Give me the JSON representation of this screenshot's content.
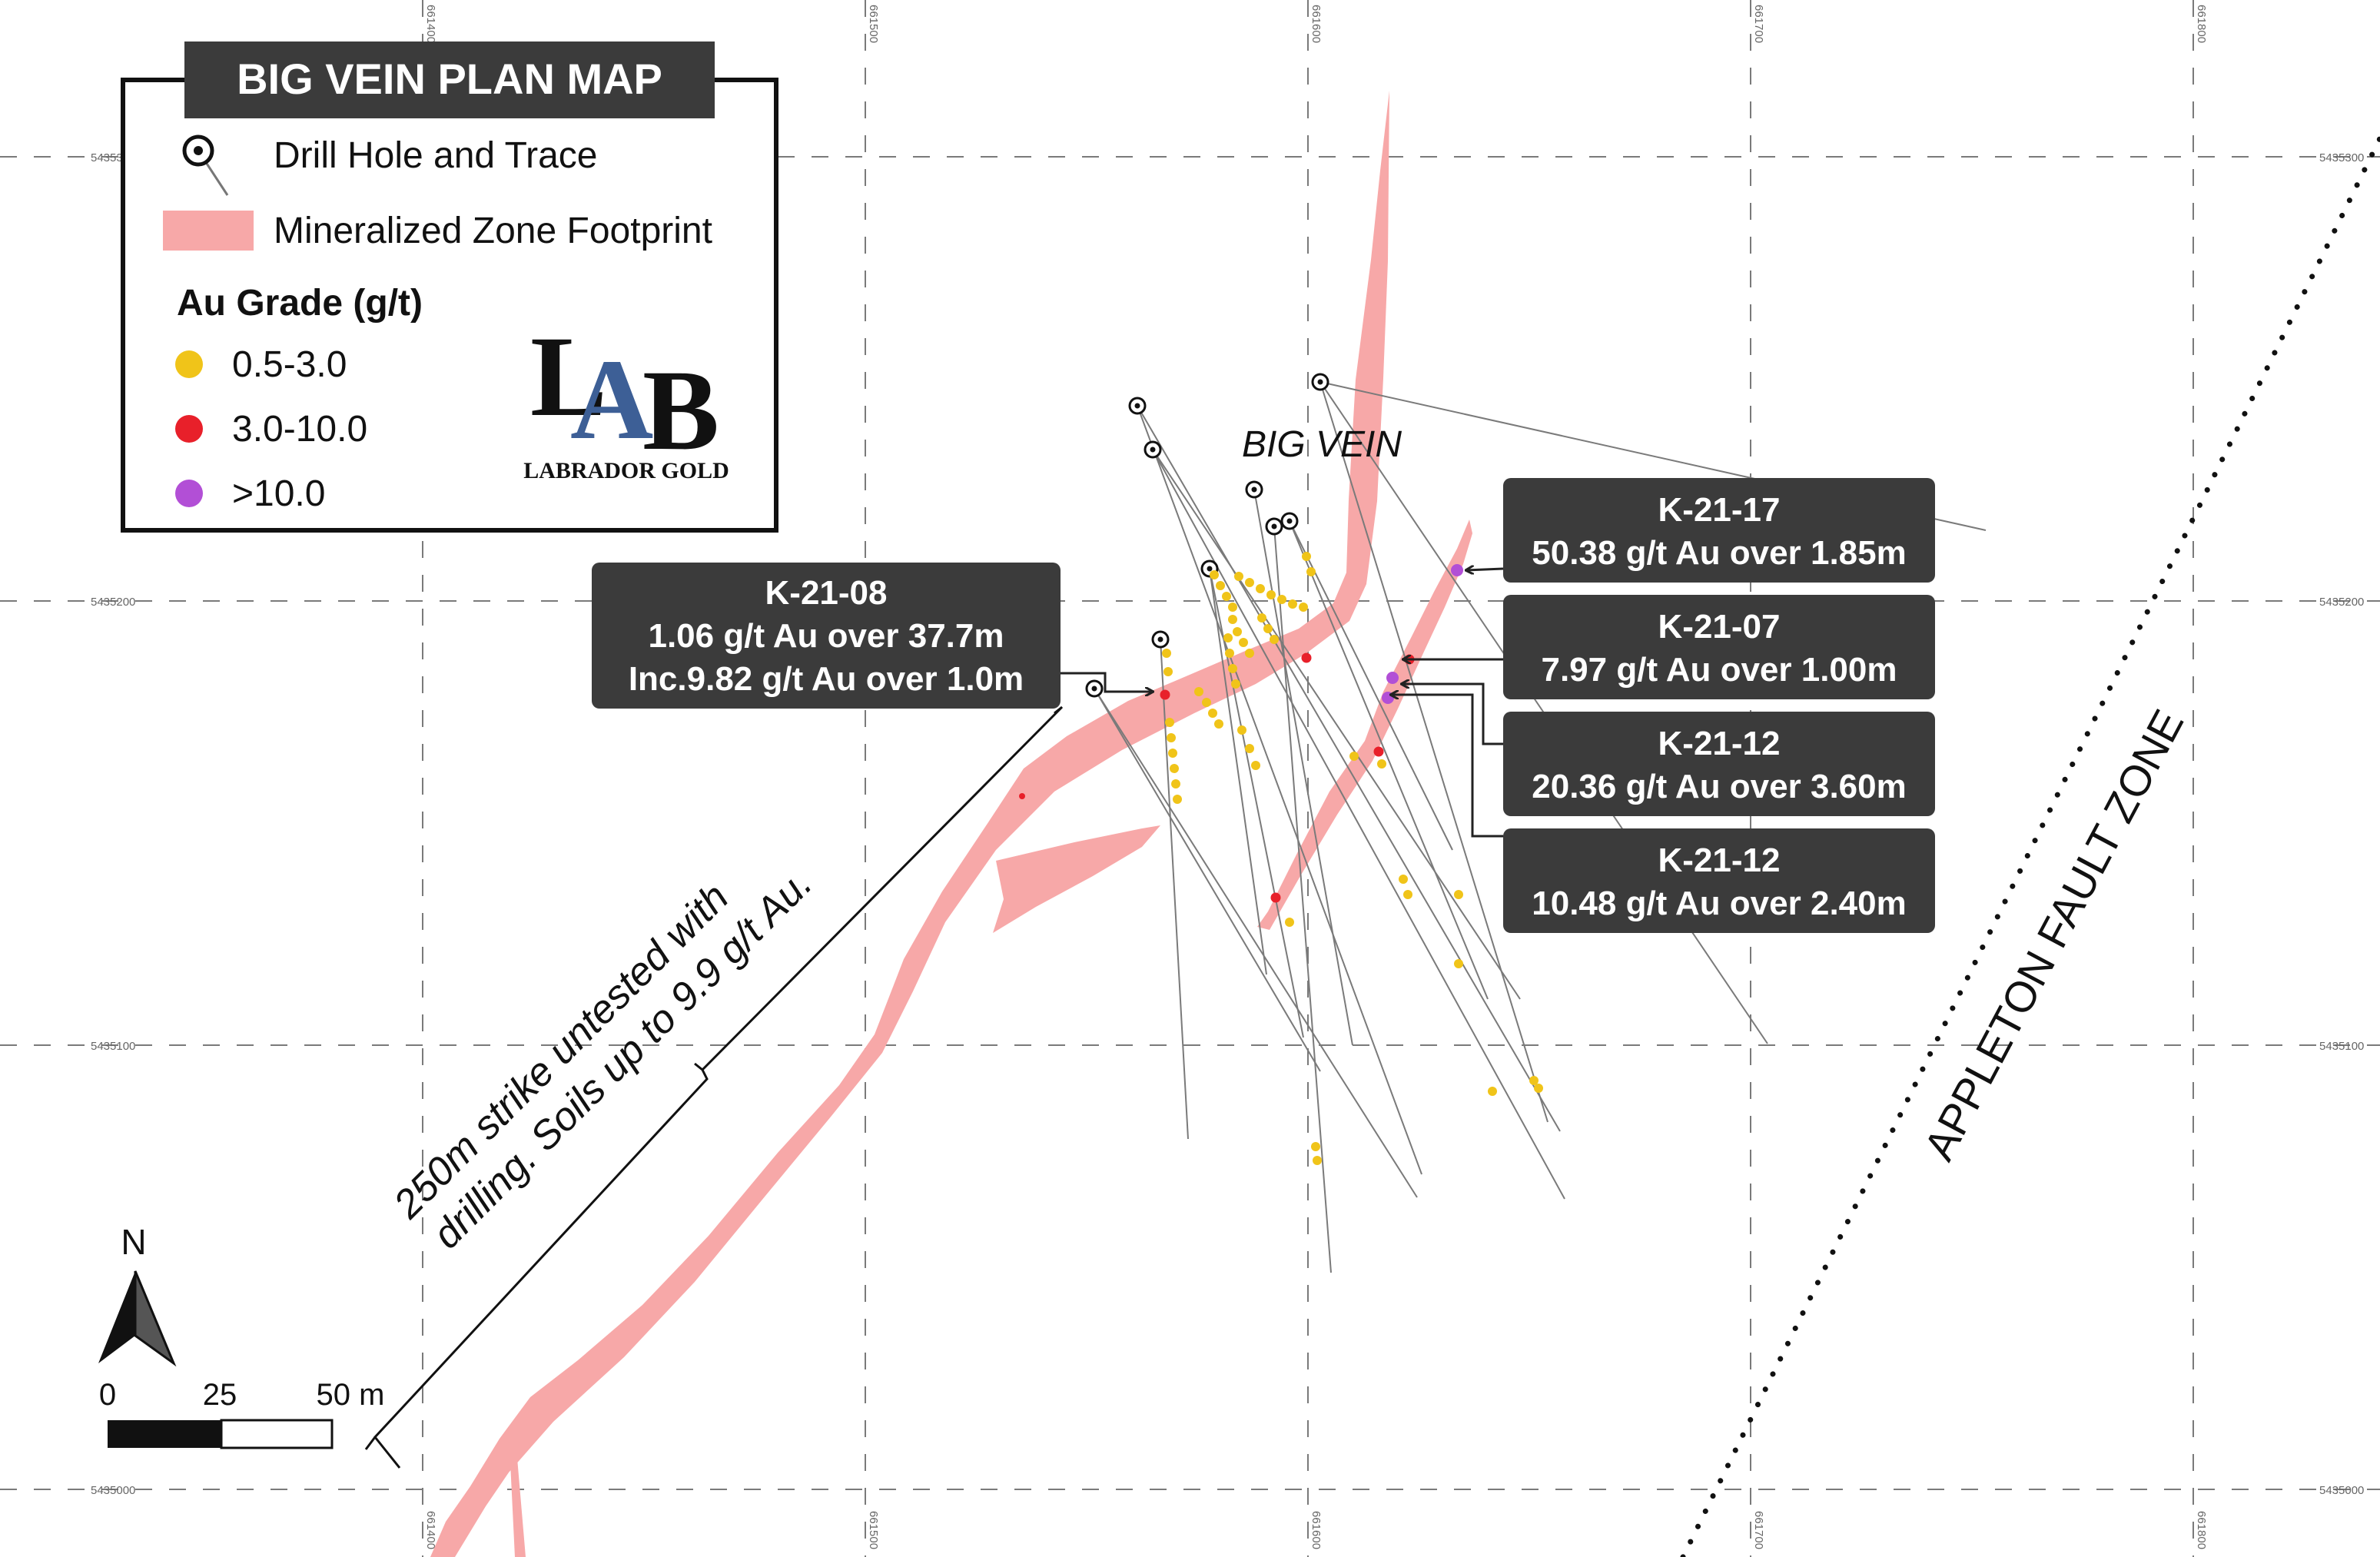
{
  "legend": {
    "title": "BIG VEIN PLAN MAP",
    "drill_hole_label": "Drill Hole and Trace",
    "zone_label": "Mineralized Zone Footprint",
    "grade_heading": "Au Grade (g/t)",
    "grades": [
      {
        "label": "0.5-3.0",
        "color": "#f0c419"
      },
      {
        "label": "3.0-10.0",
        "color": "#e8202a"
      },
      {
        "label": ">10.0",
        "color": "#b24fd6"
      }
    ]
  },
  "logo": {
    "mark": "LAB",
    "name": "LABRADOR GOLD"
  },
  "vein_label": "BIG VEIN",
  "fault_label": "APPLETON FAULT ZONE",
  "strike_note": {
    "line1": "250m strike untested with",
    "line2": "drilling. Soils up to 9.9 g/t Au."
  },
  "callouts": [
    {
      "hole": "K-21-08",
      "line1": "1.06 g/t Au over 37.7m",
      "line2": "Inc.9.82 g/t Au over 1.0m"
    },
    {
      "hole": "K-21-17",
      "line1": "50.38 g/t Au over 1.85m"
    },
    {
      "hole": "K-21-07",
      "line1": "7.97 g/t Au over 1.00m"
    },
    {
      "hole": "K-21-12",
      "line1": "20.36 g/t Au over 3.60m"
    },
    {
      "hole": "K-21-12",
      "line1": "10.48 g/t Au over 2.40m"
    }
  ],
  "north": {
    "label": "N"
  },
  "scale": {
    "labels": [
      "0",
      "25",
      "50 m"
    ]
  },
  "grid": {
    "easting_top": [
      "661400",
      "661500",
      "661600",
      "661700",
      "661800"
    ],
    "easting_bottom": [
      "661400",
      "661500",
      "661600",
      "661700",
      "661800"
    ],
    "northing": [
      "5435300",
      "5435200",
      "5435100",
      "5435000"
    ]
  },
  "colors": {
    "zone": "#f7a8a8",
    "callout_bg": "#3b3b3b",
    "callout_text": "#ffffff",
    "frame": "#111111"
  }
}
